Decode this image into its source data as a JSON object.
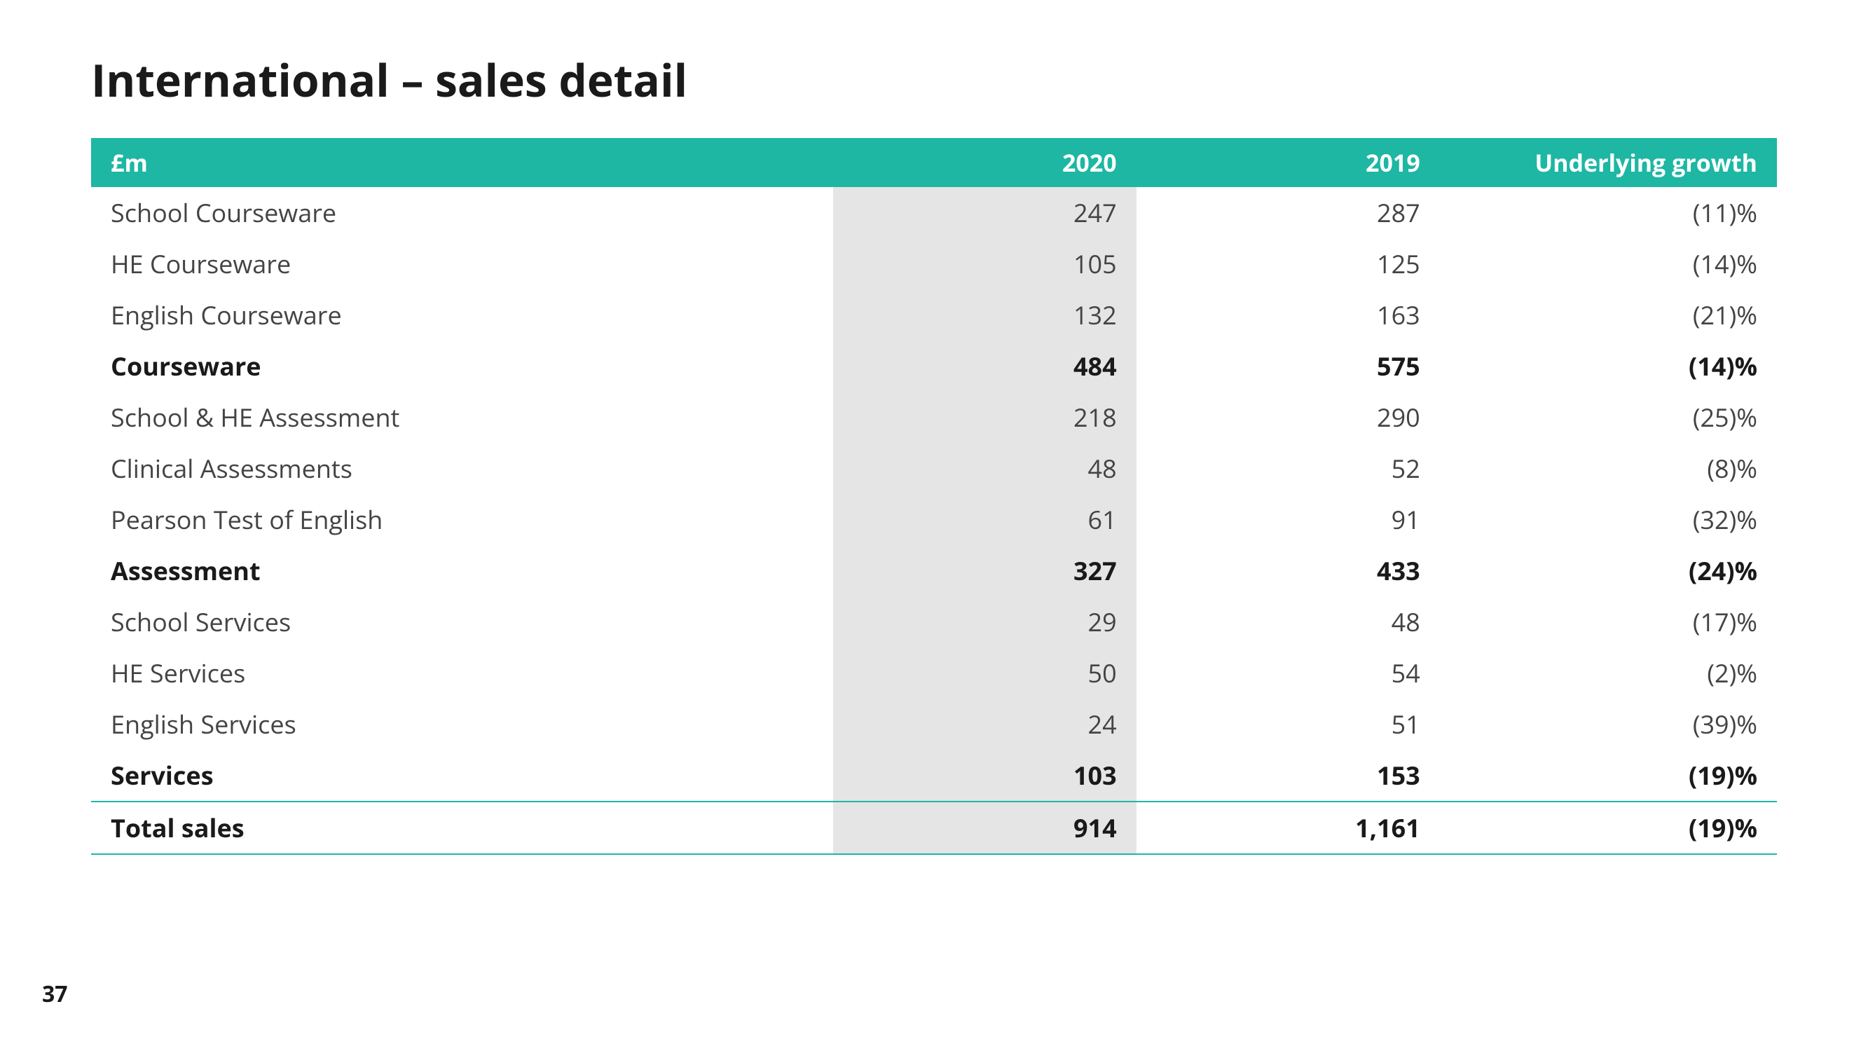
{
  "title": "International – sales detail",
  "pageNumber": "37",
  "colors": {
    "headerBg": "#1db7a4",
    "highlightBg": "#e5e5e5",
    "rule": "#1db7a4",
    "text": "#1a1a1a"
  },
  "table": {
    "columns": [
      "£m",
      "2020",
      "2019",
      "Underlying growth"
    ],
    "column_align": [
      "left",
      "right",
      "right",
      "right"
    ],
    "highlight_column_index": 1,
    "rows": [
      {
        "type": "regular",
        "cells": [
          "School Courseware",
          "247",
          "287",
          "(11)%"
        ]
      },
      {
        "type": "regular",
        "cells": [
          "HE Courseware",
          "105",
          "125",
          "(14)%"
        ]
      },
      {
        "type": "regular",
        "cells": [
          "English Courseware",
          "132",
          "163",
          "(21)%"
        ]
      },
      {
        "type": "subtotal",
        "cells": [
          "Courseware",
          "484",
          "575",
          "(14)%"
        ]
      },
      {
        "type": "regular",
        "cells": [
          "School & HE Assessment",
          "218",
          "290",
          "(25)%"
        ]
      },
      {
        "type": "regular",
        "cells": [
          "Clinical Assessments",
          "48",
          "52",
          "(8)%"
        ]
      },
      {
        "type": "regular",
        "cells": [
          "Pearson Test of English",
          "61",
          "91",
          "(32)%"
        ]
      },
      {
        "type": "subtotal",
        "cells": [
          "Assessment",
          "327",
          "433",
          "(24)%"
        ]
      },
      {
        "type": "regular",
        "cells": [
          "School Services",
          "29",
          "48",
          "(17)%"
        ]
      },
      {
        "type": "regular",
        "cells": [
          "HE Services",
          "50",
          "54",
          "(2)%"
        ]
      },
      {
        "type": "regular",
        "cells": [
          "English Services",
          "24",
          "51",
          "(39)%"
        ]
      },
      {
        "type": "subtotal",
        "cells": [
          "Services",
          "103",
          "153",
          "(19)%"
        ]
      },
      {
        "type": "total",
        "cells": [
          "Total sales",
          "914",
          "1,161",
          "(19)%"
        ]
      }
    ]
  }
}
